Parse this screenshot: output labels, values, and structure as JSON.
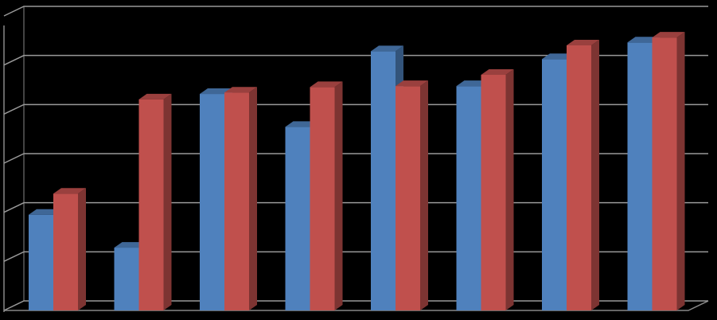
{
  "chart_data": {
    "type": "bar3d",
    "categories": [
      null,
      null,
      null,
      null,
      null,
      null,
      null,
      null
    ],
    "series": [
      {
        "color": "#4f81bd",
        "values": [
          1.95,
          1.28,
          4.41,
          3.74,
          5.28,
          4.57,
          5.12,
          5.46
        ]
      },
      {
        "color": "#c0504d",
        "values": [
          2.38,
          4.3,
          4.44,
          4.55,
          4.57,
          4.8,
          5.4,
          5.56
        ]
      }
    ],
    "ylim": [
      0,
      6
    ],
    "yticks": [
      0,
      1,
      2,
      3,
      4,
      5,
      6
    ],
    "grid": true
  }
}
